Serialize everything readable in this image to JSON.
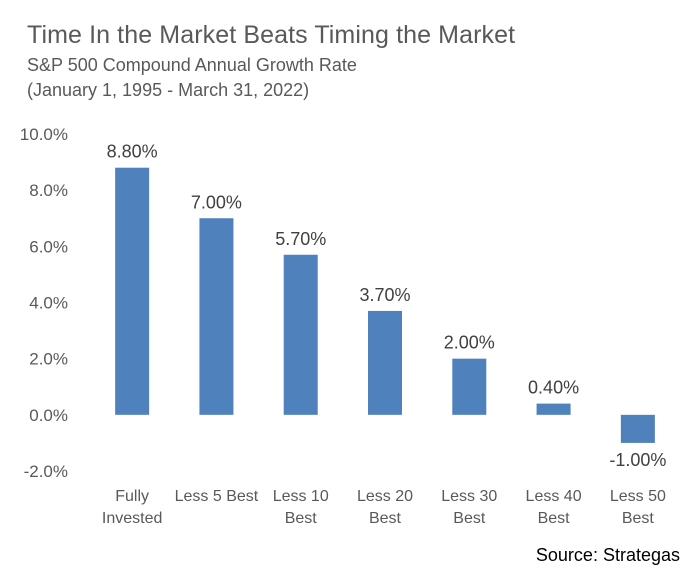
{
  "title": "Time In the Market Beats Timing the Market",
  "subtitle_line1": "S&P 500 Compound Annual Growth Rate",
  "subtitle_line2": "(January 1, 1995 - March 31, 2022)",
  "source": "Source: Strategas",
  "colors": {
    "bar": "#4f81bd",
    "axis_text": "#595959",
    "gridline": "#d9d9d9",
    "label_text": "#404040"
  },
  "chart_data": {
    "type": "bar",
    "title": "Time In the Market Beats Timing the Market",
    "subtitle": "S&P 500 Compound Annual Growth Rate (January 1, 1995 - March 31, 2022)",
    "categories": [
      [
        "Fully",
        "Invested"
      ],
      [
        "Less 5 Best"
      ],
      [
        "Less 10",
        "Best"
      ],
      [
        "Less 20",
        "Best"
      ],
      [
        "Less 30",
        "Best"
      ],
      [
        "Less 40",
        "Best"
      ],
      [
        "Less 50",
        "Best"
      ]
    ],
    "values": [
      8.8,
      7.0,
      5.7,
      3.7,
      2.0,
      0.4,
      -1.0
    ],
    "data_labels": [
      "8.80%",
      "7.00%",
      "5.70%",
      "3.70%",
      "2.00%",
      "0.40%",
      "-1.00%"
    ],
    "ylim": [
      -2,
      10
    ],
    "yticks": [
      -2,
      0,
      2,
      4,
      6,
      8,
      10
    ],
    "ytick_labels": [
      "-2.0%",
      "0.0%",
      "2.0%",
      "4.0%",
      "6.0%",
      "8.0%",
      "10.0%"
    ],
    "xlabel": "",
    "ylabel": "",
    "grid": false,
    "legend": "none"
  }
}
